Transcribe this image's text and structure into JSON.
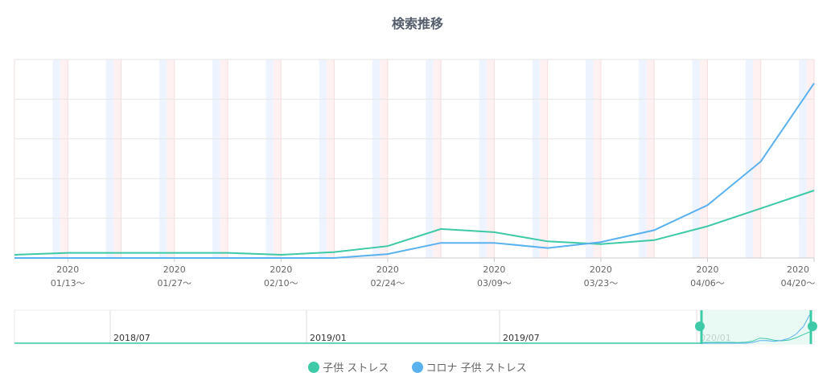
{
  "chart_data": {
    "type": "line",
    "title": "検索推移",
    "x": [
      "2020-01-06",
      "2020-01-13",
      "2020-01-20",
      "2020-01-27",
      "2020-02-03",
      "2020-02-10",
      "2020-02-17",
      "2020-02-24",
      "2020-03-02",
      "2020-03-09",
      "2020-03-16",
      "2020-03-23",
      "2020-03-30",
      "2020-04-06",
      "2020-04-13",
      "2020-04-20"
    ],
    "x_tick_labels": [
      {
        "year": "2020",
        "date": "01/13〜"
      },
      {
        "year": "2020",
        "date": "01/27〜"
      },
      {
        "year": "2020",
        "date": "02/10〜"
      },
      {
        "year": "2020",
        "date": "02/24〜"
      },
      {
        "year": "2020",
        "date": "03/09〜"
      },
      {
        "year": "2020",
        "date": "03/23〜"
      },
      {
        "year": "2020",
        "date": "04/06〜"
      },
      {
        "year": "2020",
        "date": "04/20〜"
      }
    ],
    "ylim": [
      0,
      50
    ],
    "grid": true,
    "series": [
      {
        "name": "子供 ストレス",
        "color": "#3ec9a7",
        "values": [
          0.8,
          1.3,
          1.3,
          1.3,
          1.3,
          0.8,
          1.5,
          3,
          7.3,
          6.5,
          4.2,
          3.5,
          4.5,
          8,
          12.5,
          17
        ]
      },
      {
        "name": "コロナ 子供 ストレス",
        "color": "#5ab1ef",
        "values": [
          0,
          0,
          0,
          0,
          0,
          0,
          0,
          1,
          3.8,
          3.8,
          2.5,
          4,
          7,
          13.3,
          24.3,
          44
        ]
      }
    ],
    "navigator": {
      "labels": [
        "2018/07",
        "2019/01",
        "2019/07",
        "020/01"
      ]
    },
    "legend_position": "bottom-center"
  }
}
